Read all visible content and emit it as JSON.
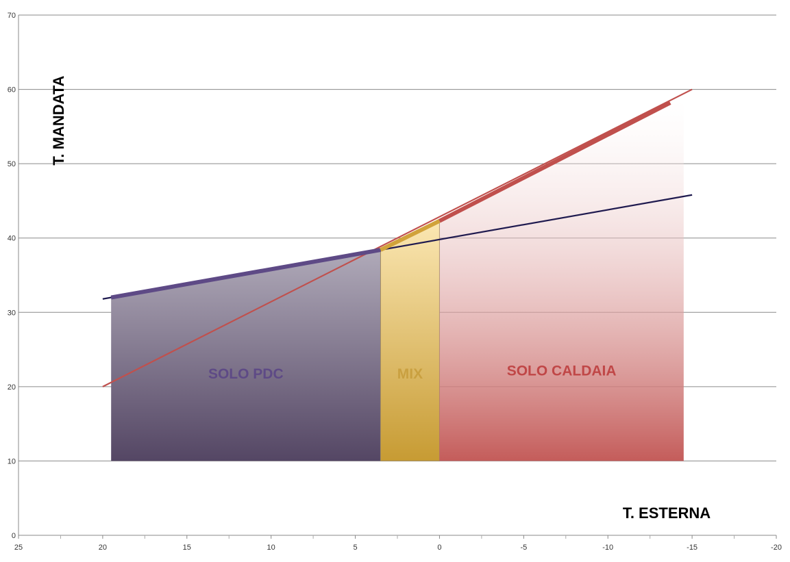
{
  "chart_data": {
    "type": "line",
    "xlabel": "T. ESTERNA",
    "ylabel": "T. MANDATA",
    "xlim": [
      25,
      -20
    ],
    "ylim": [
      0,
      70
    ],
    "x_reversed": true,
    "x_ticks": [
      25,
      20,
      15,
      10,
      5,
      0,
      -5,
      -10,
      -15,
      -20
    ],
    "y_ticks": [
      0,
      10,
      20,
      30,
      40,
      50,
      60,
      70
    ],
    "grid": "horizontal",
    "series": [
      {
        "x": [
          20,
          -15
        ],
        "y": [
          31.8,
          45.8
        ],
        "color": "#1f1a4f"
      },
      {
        "x": [
          20,
          -15
        ],
        "y": [
          20,
          60
        ],
        "color": "#c0504d"
      }
    ],
    "regions": [
      {
        "label": "SOLO PDC",
        "x_from": 19.5,
        "x_to": 3.5,
        "y_base": 10,
        "top_start": 32.0,
        "top_end": 38.4,
        "color_top": "#b0aab9",
        "color_bottom": "#544664",
        "label_color": "#5e4a86"
      },
      {
        "label": "MIX",
        "x_from": 3.5,
        "x_to": 0,
        "y_base": 10,
        "top_start": 38.4,
        "top_end": 42.3,
        "color_top": "#fbe7b3",
        "color_bottom": "#c79b33",
        "label_color": "#c9a040"
      },
      {
        "label": "SOLO CALDAIA",
        "x_from": 0,
        "x_to": -14.5,
        "y_base": 10,
        "top_start": 42.3,
        "top_end": 58.5,
        "color_top": "#ffffff",
        "color_bottom": "#c45c5a",
        "label_color": "#c04747"
      }
    ],
    "highlights": [
      {
        "x": [
          19.5,
          3.5
        ],
        "y": [
          32.0,
          38.4
        ],
        "color": "#5e4a86"
      },
      {
        "x": [
          3.5,
          0
        ],
        "y": [
          38.4,
          42.3
        ],
        "color": "#d1a23a"
      },
      {
        "x": [
          0,
          -13.7
        ],
        "y": [
          42.3,
          58.2
        ],
        "color": "#c0504d"
      }
    ]
  }
}
